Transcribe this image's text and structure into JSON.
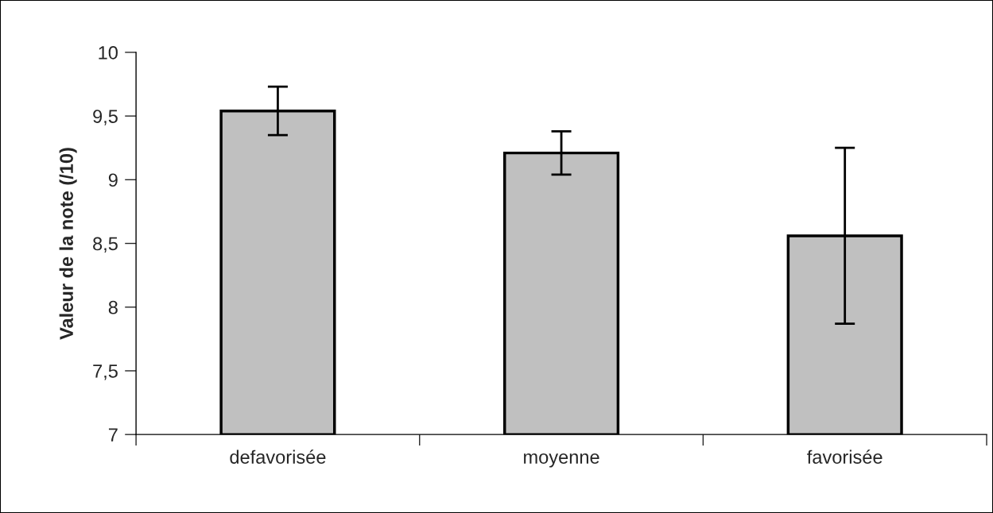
{
  "chart_data": {
    "type": "bar",
    "ylabel": "Valeur de la note (/10)",
    "categories": [
      "defavorisée",
      "moyenne",
      "favorisée"
    ],
    "values": [
      9.54,
      9.21,
      8.56
    ],
    "errors": [
      0.19,
      0.17,
      0.69
    ],
    "color": "#c0c0c0",
    "ylim": [
      7,
      10
    ],
    "yticks": [
      {
        "value": 7,
        "label": "7"
      },
      {
        "value": 7.5,
        "label": "7,5"
      },
      {
        "value": 8,
        "label": "8"
      },
      {
        "value": 8.5,
        "label": "8,5"
      },
      {
        "value": 9,
        "label": "9"
      },
      {
        "value": 9.5,
        "label": "9,5"
      },
      {
        "value": 10,
        "label": "10"
      }
    ],
    "grid": false
  }
}
